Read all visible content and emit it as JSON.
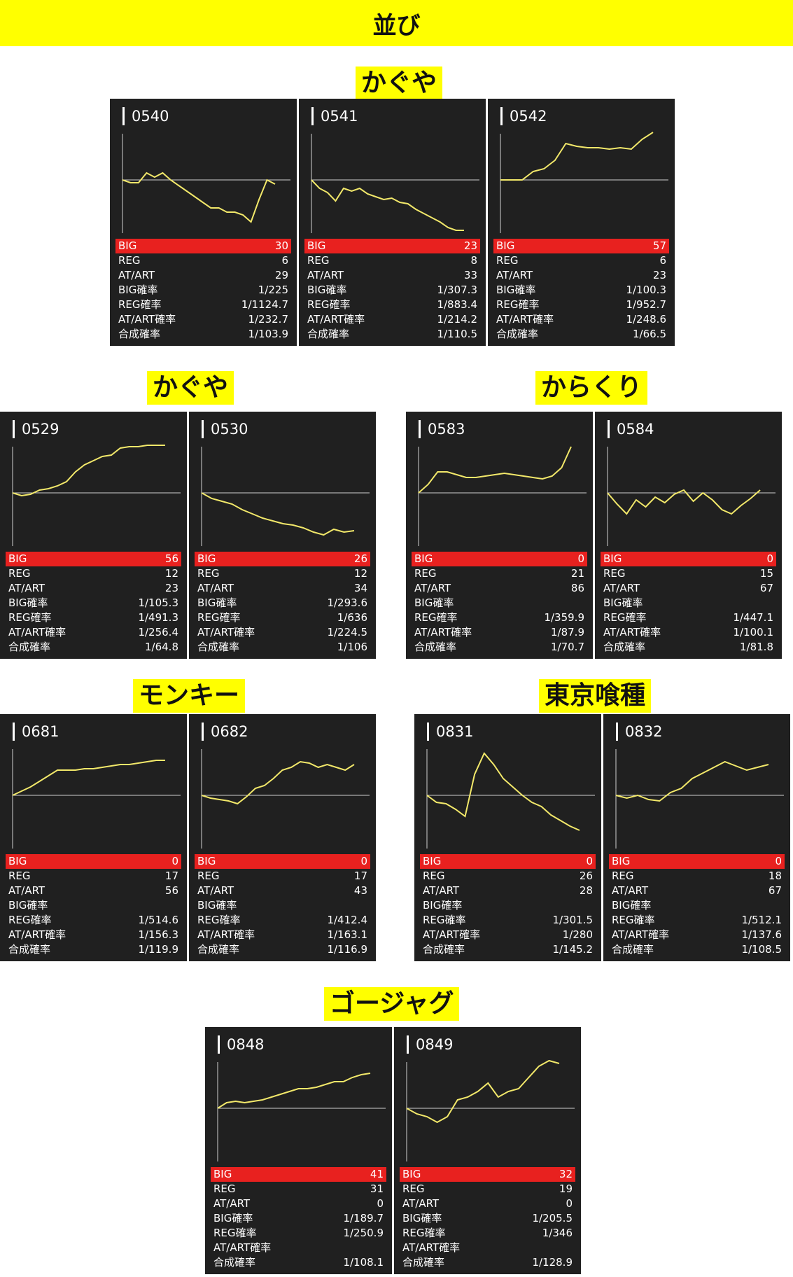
{
  "header": {
    "title": "並び"
  },
  "labels": {
    "big": "BIG",
    "reg": "REG",
    "at": "AT/ART",
    "big_rate": "BIG確率",
    "reg_rate": "REG確率",
    "at_rate": "AT/ART確率",
    "combined_rate": "合成確率"
  },
  "groups": [
    {
      "title": "かぐや",
      "panels": [
        {
          "number": "0540",
          "big": "30",
          "reg": "6",
          "at": "29",
          "big_rate": "1/225",
          "reg_rate": "1/1124.7",
          "at_rate": "1/232.7",
          "combined_rate": "1/103.9",
          "trend": [
            0,
            -2,
            -2,
            5,
            2,
            5,
            0,
            -4,
            -8,
            -12,
            -16,
            -20,
            -20,
            -23,
            -23,
            -25,
            -30,
            -14,
            0,
            -3
          ]
        },
        {
          "number": "0541",
          "big": "23",
          "reg": "8",
          "at": "33",
          "big_rate": "1/307.3",
          "reg_rate": "1/883.4",
          "at_rate": "1/214.2",
          "combined_rate": "1/110.5",
          "trend": [
            0,
            -6,
            -9,
            -15,
            -6,
            -8,
            -6,
            -10,
            -12,
            -14,
            -13,
            -16,
            -17,
            -21,
            -24,
            -27,
            -30,
            -34,
            -36,
            -36
          ]
        },
        {
          "number": "0542",
          "big": "57",
          "reg": "6",
          "at": "23",
          "big_rate": "1/100.3",
          "reg_rate": "1/952.7",
          "at_rate": "1/248.6",
          "combined_rate": "1/66.5",
          "trend": [
            0,
            0,
            0,
            6,
            8,
            14,
            26,
            24,
            23,
            23,
            22,
            23,
            22,
            29,
            34
          ]
        }
      ]
    },
    {
      "title": "かぐや",
      "panels": [
        {
          "number": "0529",
          "big": "56",
          "reg": "12",
          "at": "23",
          "big_rate": "1/105.3",
          "reg_rate": "1/491.3",
          "at_rate": "1/256.4",
          "combined_rate": "1/64.8",
          "trend": [
            0,
            -2,
            -1,
            2,
            3,
            5,
            8,
            15,
            20,
            23,
            26,
            27,
            32,
            33,
            33,
            36,
            37,
            37
          ]
        },
        {
          "number": "0530",
          "big": "26",
          "reg": "12",
          "at": "34",
          "big_rate": "1/293.6",
          "reg_rate": "1/636",
          "at_rate": "1/224.5",
          "combined_rate": "1/106",
          "trend": [
            0,
            -4,
            -6,
            -8,
            -12,
            -15,
            -18,
            -20,
            -22,
            -23,
            -25,
            -28,
            -30,
            -26,
            -28,
            -27
          ]
        }
      ]
    },
    {
      "title": "からくり",
      "panels": [
        {
          "number": "0583",
          "big": "0",
          "reg": "21",
          "at": "86",
          "big_rate": "",
          "reg_rate": "1/359.9",
          "at_rate": "1/87.9",
          "combined_rate": "1/70.7",
          "trend": [
            0,
            6,
            15,
            15,
            13,
            11,
            11,
            12,
            13,
            14,
            13,
            12,
            11,
            10,
            12,
            18,
            33
          ]
        },
        {
          "number": "0584",
          "big": "0",
          "reg": "15",
          "at": "67",
          "big_rate": "",
          "reg_rate": "1/447.1",
          "at_rate": "1/100.1",
          "combined_rate": "1/81.8",
          "trend": [
            0,
            -8,
            -15,
            -5,
            -10,
            -3,
            -7,
            -1,
            2,
            -6,
            0,
            -5,
            -12,
            -15,
            -9,
            -4,
            2
          ]
        }
      ]
    },
    {
      "title": "モンキー",
      "panels": [
        {
          "number": "0681",
          "big": "0",
          "reg": "17",
          "at": "56",
          "big_rate": "",
          "reg_rate": "1/514.6",
          "at_rate": "1/156.3",
          "combined_rate": "1/119.9",
          "trend": [
            0,
            3,
            6,
            10,
            14,
            18,
            18,
            18,
            19,
            19,
            20,
            21,
            22,
            22,
            23,
            24,
            25,
            25
          ]
        },
        {
          "number": "0682",
          "big": "0",
          "reg": "17",
          "at": "43",
          "big_rate": "",
          "reg_rate": "1/412.4",
          "at_rate": "1/163.1",
          "combined_rate": "1/116.9",
          "trend": [
            0,
            -2,
            -3,
            -4,
            -6,
            -1,
            5,
            7,
            12,
            18,
            20,
            24,
            23,
            20,
            22,
            20,
            18,
            22
          ]
        }
      ]
    },
    {
      "title": "東京喰種",
      "panels": [
        {
          "number": "0831",
          "big": "0",
          "reg": "26",
          "at": "28",
          "big_rate": "",
          "reg_rate": "1/301.5",
          "at_rate": "1/280",
          "combined_rate": "1/145.2",
          "trend": [
            0,
            -5,
            -6,
            -10,
            -15,
            15,
            30,
            22,
            12,
            6,
            0,
            -5,
            -8,
            -14,
            -18,
            -22,
            -25
          ]
        },
        {
          "number": "0832",
          "big": "0",
          "reg": "18",
          "at": "67",
          "big_rate": "",
          "reg_rate": "1/512.1",
          "at_rate": "1/137.6",
          "combined_rate": "1/108.5",
          "trend": [
            0,
            -2,
            0,
            -3,
            -4,
            2,
            5,
            12,
            16,
            20,
            24,
            21,
            18,
            20,
            22
          ]
        }
      ]
    },
    {
      "title": "ゴージャグ",
      "panels": [
        {
          "number": "0848",
          "big": "41",
          "reg": "31",
          "at": "0",
          "big_rate": "1/189.7",
          "reg_rate": "1/250.9",
          "at_rate": "",
          "combined_rate": "1/108.1",
          "trend": [
            0,
            4,
            5,
            4,
            5,
            6,
            8,
            10,
            12,
            14,
            14,
            15,
            17,
            19,
            19,
            22,
            24,
            25
          ]
        },
        {
          "number": "0849",
          "big": "32",
          "reg": "19",
          "at": "0",
          "big_rate": "1/205.5",
          "reg_rate": "1/346",
          "at_rate": "",
          "combined_rate": "1/128.9",
          "trend": [
            0,
            -4,
            -6,
            -10,
            -6,
            6,
            8,
            12,
            18,
            8,
            12,
            14,
            22,
            30,
            34,
            32
          ]
        }
      ]
    }
  ],
  "colors": {
    "header_bg": "#ffff00",
    "panel_bg": "#202020",
    "big_row_bg": "#e8211f",
    "graph_line": "#f2e86a",
    "baseline": "#cfcfcf"
  }
}
